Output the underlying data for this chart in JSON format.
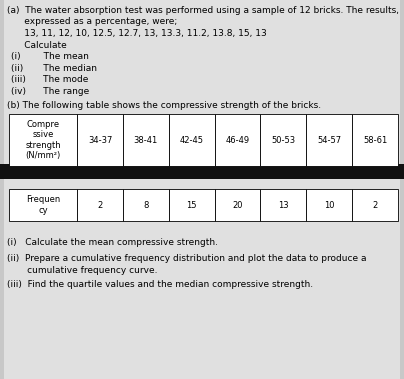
{
  "bg_color": "#c8c8c8",
  "page_color": "#e0e0e0",
  "divider_color": "#111111",
  "table_bg": "#ffffff",
  "title_line1": "(a)  The water absorption test was performed using a sample of 12 bricks. The results,",
  "title_line2": "      expressed as a percentage, were;",
  "title_line3": "      13, 11, 12, 10, 12.5, 12.7, 13, 13.3, 11.2, 13.8, 15, 13",
  "title_line4": "      Calculate",
  "items": [
    "(i)        The mean",
    "(ii)       The median",
    "(iii)      The mode",
    "(iv)      The range"
  ],
  "b_intro": "(b) The following table shows the compressive strength of the bricks.",
  "table1_col0": "Compre\nssive\nstrength\n(N/mm²)",
  "table1_cols": [
    "34-37",
    "38-41",
    "42-45",
    "46-49",
    "50-53",
    "54-57",
    "58-61"
  ],
  "table2_col0": "Frequen\ncy",
  "table2_cols": [
    "2",
    "8",
    "15",
    "20",
    "13",
    "10",
    "2"
  ],
  "bot_line1": "(i)   Calculate the mean compressive strength.",
  "bot_line2": "(ii)  Prepare a cumulative frequency distribution and plot the data to produce a",
  "bot_line3": "       cumulative frequency curve.",
  "bot_line4": "(iii)  Find the quartile values and the median compressive strength.",
  "fs_body": 6.5,
  "fs_table": 6.0
}
